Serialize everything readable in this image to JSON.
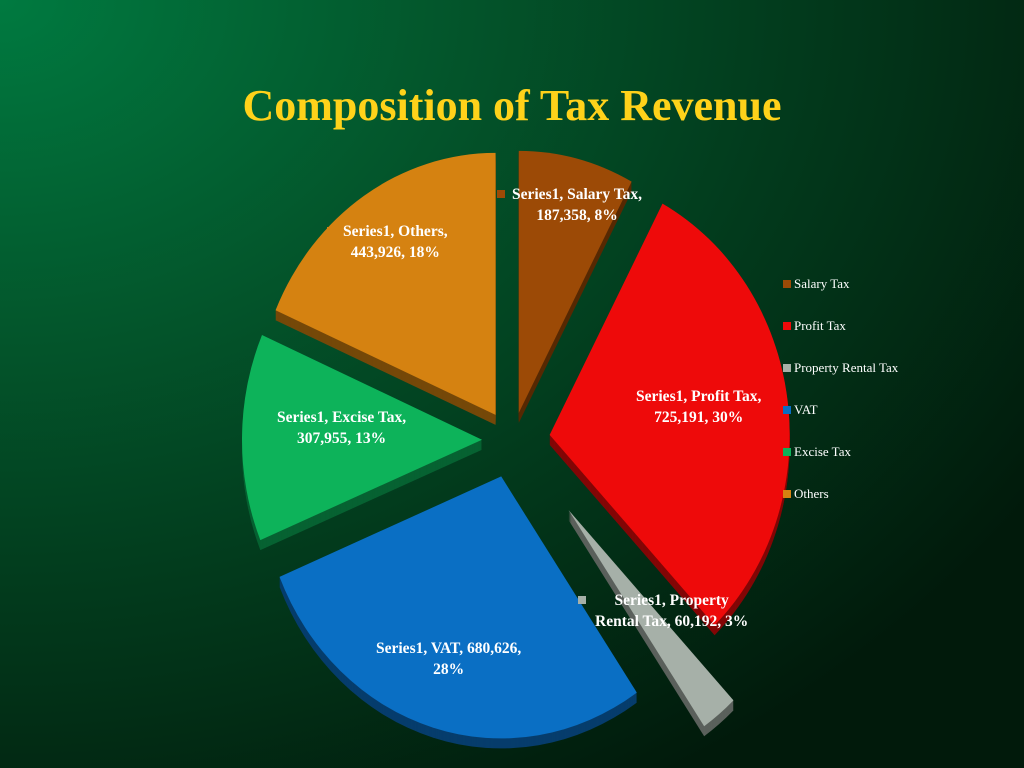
{
  "slide": {
    "title": "Composition of Tax Revenue"
  },
  "chart_data": {
    "type": "pie",
    "style": "exploded-3d",
    "title": "Composition of Tax Revenue",
    "legend_position": "right",
    "slices": [
      {
        "category": "Salary Tax",
        "value": 187358,
        "percent": 8,
        "color": "#9c4a06",
        "label": "Series1, Salary Tax,\n187,358, 8%"
      },
      {
        "category": "Profit Tax",
        "value": 725191,
        "percent": 30,
        "color": "#ee0a0a",
        "label": "Series1, Profit Tax,\n725,191, 30%"
      },
      {
        "category": "Property Rental Tax",
        "value": 60192,
        "percent": 3,
        "color": "#a6b0a8",
        "label": "Series1, Property\nRental Tax, 60,192, 3%"
      },
      {
        "category": "VAT",
        "value": 680626,
        "percent": 28,
        "color": "#0a6fc4",
        "label": "Series1, VAT, 680,626,\n28%"
      },
      {
        "category": "Excise Tax",
        "value": 307955,
        "percent": 13,
        "color": "#0db35a",
        "label": "Series1, Excise Tax,\n307,955, 13%"
      },
      {
        "category": "Others",
        "value": 443926,
        "percent": 18,
        "color": "#d58211",
        "label": "Series1, Others,\n443,926, 18%"
      }
    ]
  }
}
